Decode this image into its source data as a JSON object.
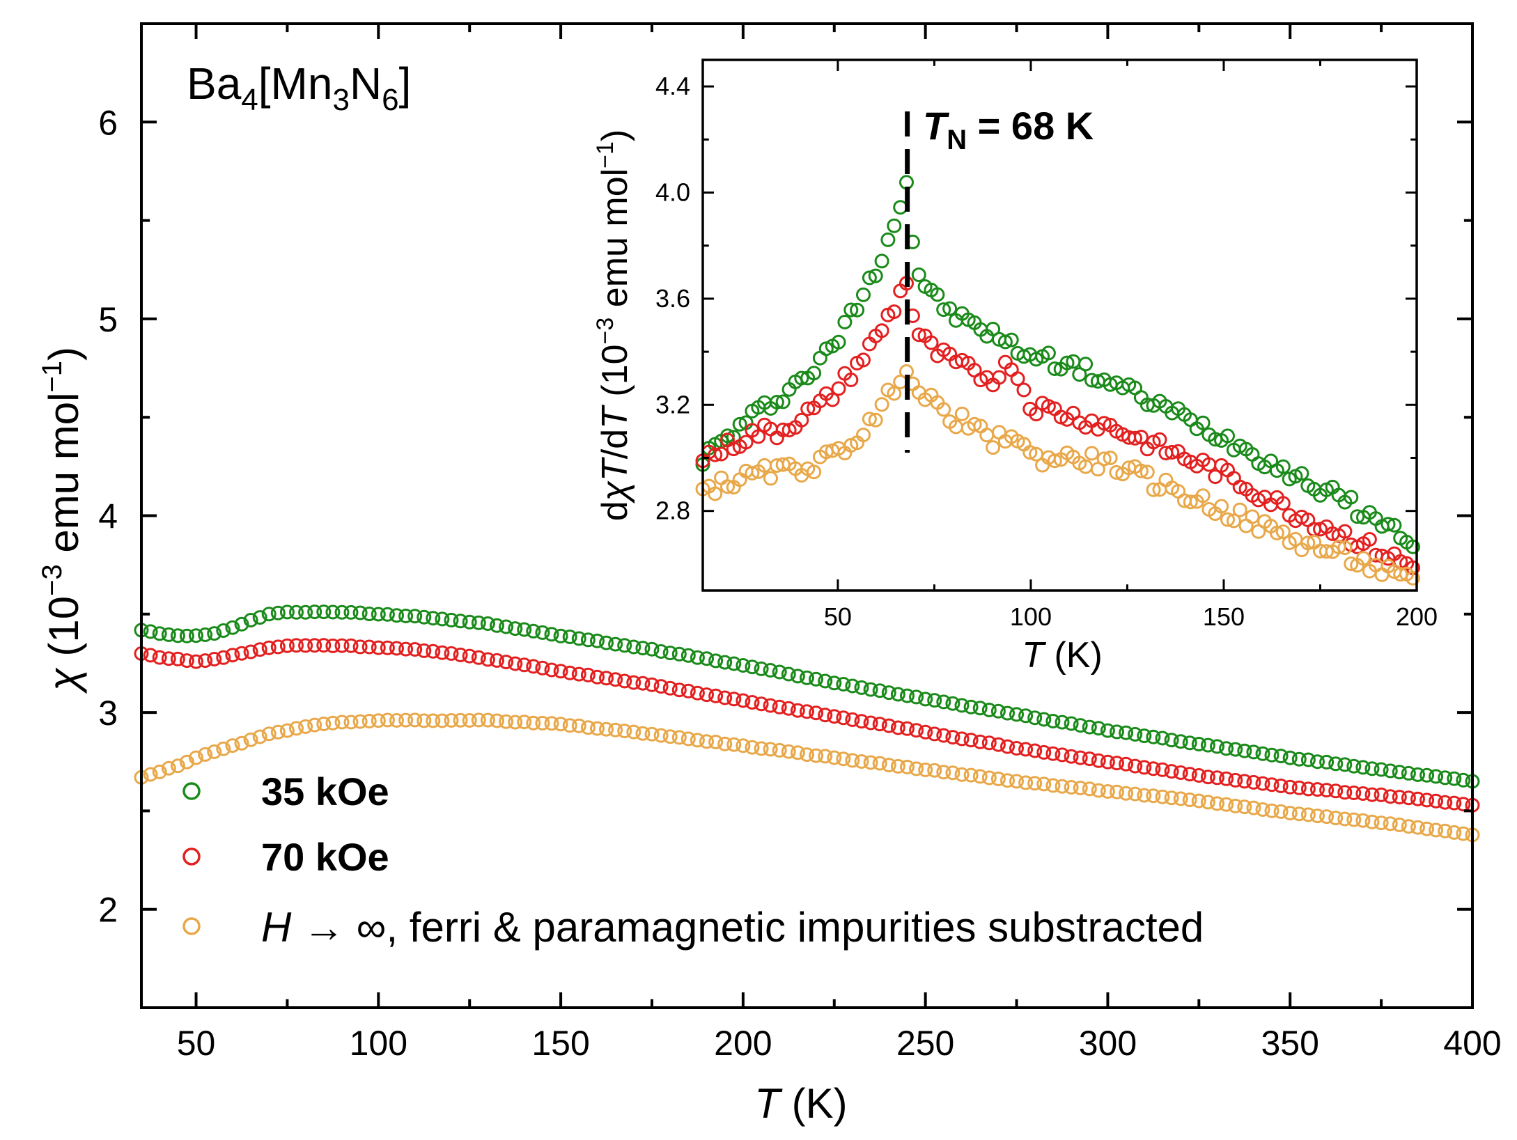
{
  "chart_data": [
    {
      "id": "main",
      "type": "scatter",
      "title": "Ba4[Mn3N6]",
      "formula": {
        "p1": "Ba",
        "s1": "4",
        "p2": "[Mn",
        "s2": "3",
        "p3": "N",
        "s3": "6",
        "p4": "]"
      },
      "xlabel": {
        "var": "T",
        "unit": " (K)"
      },
      "ylabel": {
        "var": "χ",
        "pre": " (10",
        "exp1": "−3",
        "mid": " emu mol",
        "exp2": "−1",
        "post": ")"
      },
      "xlim": [
        35,
        400
      ],
      "ylim": [
        1.5,
        6.5
      ],
      "xticks": [
        50,
        100,
        150,
        200,
        250,
        300,
        350,
        400
      ],
      "yticks": [
        2,
        3,
        4,
        5,
        6
      ],
      "legend": {
        "position": "bottom-left",
        "entries": [
          {
            "label": "35 kOe",
            "color": "#1a8a1a",
            "bold": true
          },
          {
            "label": "70 kOe",
            "color": "#e32020",
            "bold": true
          },
          {
            "label_var": "H",
            "label_arrow": " → ∞",
            "label_rest": ", ferri & paramagnetic impurities substracted",
            "color": "#e8a84a",
            "bold": false
          }
        ]
      },
      "series": [
        {
          "name": "35 kOe",
          "color": "#1a8a1a",
          "x": [
            35,
            40,
            45,
            50,
            55,
            60,
            65,
            70,
            75,
            80,
            90,
            100,
            110,
            120,
            130,
            140,
            150,
            175,
            200,
            225,
            250,
            275,
            300,
            325,
            350,
            375,
            400
          ],
          "y": [
            3.42,
            3.4,
            3.39,
            3.39,
            3.4,
            3.43,
            3.47,
            3.5,
            3.51,
            3.51,
            3.51,
            3.5,
            3.49,
            3.47,
            3.45,
            3.42,
            3.39,
            3.32,
            3.24,
            3.15,
            3.07,
            2.99,
            2.91,
            2.84,
            2.77,
            2.71,
            2.65
          ]
        },
        {
          "name": "70 kOe",
          "color": "#e32020",
          "x": [
            35,
            40,
            45,
            50,
            55,
            60,
            65,
            70,
            75,
            80,
            90,
            100,
            110,
            120,
            130,
            140,
            150,
            175,
            200,
            225,
            250,
            275,
            300,
            325,
            350,
            375,
            400
          ],
          "y": [
            3.3,
            3.28,
            3.27,
            3.26,
            3.27,
            3.29,
            3.31,
            3.33,
            3.34,
            3.34,
            3.34,
            3.33,
            3.32,
            3.3,
            3.27,
            3.24,
            3.21,
            3.14,
            3.06,
            2.98,
            2.9,
            2.82,
            2.75,
            2.68,
            2.62,
            2.58,
            2.53
          ]
        },
        {
          "name": "H → ∞, ferri & paramagnetic impurities substracted",
          "color": "#e8a84a",
          "x": [
            35,
            40,
            45,
            50,
            55,
            60,
            65,
            70,
            75,
            80,
            90,
            100,
            110,
            120,
            130,
            140,
            150,
            175,
            200,
            225,
            250,
            275,
            300,
            325,
            350,
            375,
            400
          ],
          "y": [
            2.67,
            2.7,
            2.73,
            2.77,
            2.8,
            2.83,
            2.86,
            2.89,
            2.91,
            2.93,
            2.95,
            2.96,
            2.96,
            2.96,
            2.96,
            2.95,
            2.94,
            2.89,
            2.83,
            2.77,
            2.71,
            2.65,
            2.6,
            2.55,
            2.49,
            2.44,
            2.38
          ]
        }
      ]
    },
    {
      "id": "inset",
      "type": "scatter",
      "xlabel": {
        "var": "T",
        "unit": " (K)"
      },
      "ylabel": {
        "pre": "d",
        "var1": "χ",
        "var2": "T",
        "mid": "/d",
        "var3": "T",
        "open": " (10",
        "exp1": "−3",
        "unit": " emu mol",
        "exp2": "−1",
        "close": ")"
      },
      "xlim": [
        15,
        200
      ],
      "ylim": [
        2.5,
        4.5
      ],
      "xticks": [
        50,
        100,
        150,
        200
      ],
      "yticks": [
        2.8,
        3.2,
        3.6,
        4.0,
        4.4
      ],
      "ytick_labels": [
        "2.8",
        "3.2",
        "3.6",
        "4.0",
        "4.4"
      ],
      "annotation": {
        "var": "T",
        "sub": "N",
        "rest": " = 68 K",
        "x": 68
      },
      "series": [
        {
          "name": "35 kOe",
          "color": "#1a8a1a",
          "x": [
            15,
            20,
            25,
            30,
            35,
            40,
            45,
            50,
            55,
            60,
            65,
            68,
            70,
            75,
            80,
            85,
            90,
            95,
            100,
            110,
            120,
            130,
            140,
            150,
            160,
            170,
            180,
            190,
            200
          ],
          "y": [
            3.0,
            3.06,
            3.12,
            3.18,
            3.23,
            3.29,
            3.35,
            3.45,
            3.58,
            3.72,
            3.9,
            4.05,
            3.72,
            3.6,
            3.54,
            3.5,
            3.47,
            3.42,
            3.39,
            3.35,
            3.29,
            3.22,
            3.15,
            3.08,
            3.0,
            2.92,
            2.85,
            2.76,
            2.68
          ]
        },
        {
          "name": "70 kOe",
          "color": "#e32020",
          "x": [
            15,
            20,
            25,
            30,
            35,
            40,
            45,
            50,
            55,
            60,
            65,
            68,
            70,
            75,
            80,
            85,
            90,
            95,
            100,
            110,
            120,
            130,
            140,
            150,
            160,
            170,
            180,
            190,
            200
          ],
          "y": [
            3.0,
            3.03,
            3.07,
            3.1,
            3.1,
            3.15,
            3.19,
            3.26,
            3.35,
            3.45,
            3.58,
            3.68,
            3.48,
            3.4,
            3.36,
            3.32,
            3.3,
            3.36,
            3.2,
            3.16,
            3.12,
            3.06,
            3.0,
            2.94,
            2.86,
            2.78,
            2.72,
            2.65,
            2.58
          ]
        },
        {
          "name": "H → ∞",
          "color": "#e8a84a",
          "x": [
            15,
            20,
            25,
            30,
            35,
            40,
            45,
            50,
            55,
            60,
            65,
            68,
            70,
            75,
            80,
            85,
            90,
            95,
            100,
            110,
            120,
            130,
            140,
            150,
            160,
            170,
            180,
            190,
            200
          ],
          "y": [
            2.88,
            2.9,
            2.92,
            2.94,
            2.95,
            2.96,
            2.98,
            3.02,
            3.08,
            3.15,
            3.28,
            3.36,
            3.25,
            3.2,
            3.15,
            3.12,
            3.05,
            3.1,
            3.0,
            3.0,
            2.98,
            2.92,
            2.86,
            2.8,
            2.74,
            2.68,
            2.64,
            2.58,
            2.52
          ]
        }
      ]
    }
  ]
}
